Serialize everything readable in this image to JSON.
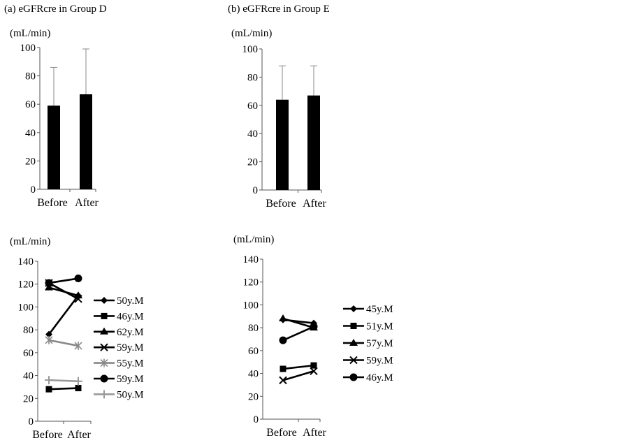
{
  "chart_data": [
    {
      "type": "bar",
      "title": "(a) eGFRcre in Group D",
      "ylabel": "(mL/min)",
      "categories": [
        "Before",
        "After"
      ],
      "values": [
        59,
        67
      ],
      "error_upper": [
        86,
        99
      ],
      "ylim": [
        0,
        100
      ],
      "yticks": [
        0,
        20,
        40,
        60,
        80,
        100
      ],
      "bar_color": "#000000",
      "grid": false
    },
    {
      "type": "bar",
      "title": "(b) eGFRcre in Group E",
      "ylabel": "(mL/min)",
      "categories": [
        "Before",
        "After"
      ],
      "values": [
        64,
        67
      ],
      "error_upper": [
        88,
        88
      ],
      "ylim": [
        0,
        100
      ],
      "yticks": [
        0,
        20,
        40,
        60,
        80,
        100
      ],
      "bar_color": "#000000",
      "grid": false
    },
    {
      "type": "line",
      "ylabel": "(mL/min)",
      "categories": [
        "Before",
        "After"
      ],
      "ylim": [
        0,
        140
      ],
      "yticks": [
        0,
        20,
        40,
        60,
        80,
        100,
        120,
        140
      ],
      "legend_position": "right",
      "grid": false,
      "series": [
        {
          "name": "50y.M",
          "values": [
            76,
            110
          ],
          "marker": "diamond",
          "color": "#000000"
        },
        {
          "name": "46y.M",
          "values": [
            28,
            29
          ],
          "marker": "square",
          "color": "#000000"
        },
        {
          "name": "62y.M",
          "values": [
            117,
            110
          ],
          "marker": "triangle",
          "color": "#000000"
        },
        {
          "name": "59y.M",
          "values": [
            121,
            107
          ],
          "marker": "x",
          "color": "#000000"
        },
        {
          "name": "55y.M",
          "values": [
            71,
            66
          ],
          "marker": "star",
          "color": "#888888"
        },
        {
          "name": "59y.M",
          "values": [
            121,
            125
          ],
          "marker": "circle",
          "color": "#000000"
        },
        {
          "name": "50y.M",
          "values": [
            36,
            35
          ],
          "marker": "plus",
          "color": "#999999"
        }
      ]
    },
    {
      "type": "line",
      "ylabel": "(mL/min)",
      "categories": [
        "Before",
        "After"
      ],
      "ylim": [
        0,
        140
      ],
      "yticks": [
        0,
        20,
        40,
        60,
        80,
        100,
        120,
        140
      ],
      "legend_position": "right",
      "grid": false,
      "series": [
        {
          "name": "45y.M",
          "values": [
            87,
            84
          ],
          "marker": "diamond",
          "color": "#000000"
        },
        {
          "name": "51y.M",
          "values": [
            44,
            47
          ],
          "marker": "square",
          "color": "#000000"
        },
        {
          "name": "57y.M",
          "values": [
            88,
            80
          ],
          "marker": "triangle",
          "color": "#000000"
        },
        {
          "name": "59y.M",
          "values": [
            34,
            42
          ],
          "marker": "x",
          "color": "#000000"
        },
        {
          "name": "46y.M",
          "values": [
            69,
            81
          ],
          "marker": "circle",
          "color": "#000000"
        }
      ]
    }
  ]
}
